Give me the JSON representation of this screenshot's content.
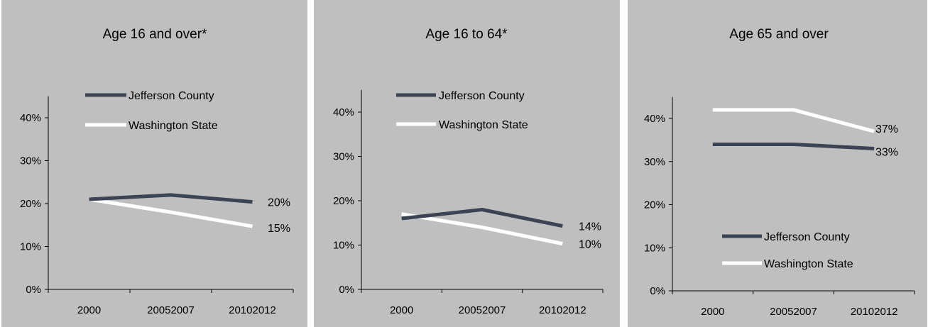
{
  "colors": {
    "background": "#bfbfbf",
    "jefferson": "#3b4454",
    "washington": "#ffffff",
    "axis": "#000000"
  },
  "chart_data": [
    {
      "type": "line",
      "title": "Age 16 and over*",
      "categories": [
        "2000",
        "20052007",
        "20102012"
      ],
      "yticks": [
        "0%",
        "10%",
        "20%",
        "30%",
        "40%"
      ],
      "ylim": [
        0,
        45
      ],
      "legend_position": "top",
      "series": [
        {
          "name": "Jefferson County",
          "values": [
            21,
            22,
            20.4
          ],
          "end_label": "20%"
        },
        {
          "name": "Washington State",
          "values": [
            21,
            18,
            14.7
          ],
          "end_label": "15%"
        }
      ]
    },
    {
      "type": "line",
      "title": "Age 16 to 64*",
      "categories": [
        "2000",
        "20052007",
        "20102012"
      ],
      "yticks": [
        "0%",
        "10%",
        "20%",
        "30%",
        "40%"
      ],
      "ylim": [
        0,
        45
      ],
      "legend_position": "top",
      "series": [
        {
          "name": "Jefferson County",
          "values": [
            16,
            18,
            14.3
          ],
          "end_label": "14%"
        },
        {
          "name": "Washington State",
          "values": [
            17,
            14,
            10.3
          ],
          "end_label": "10%"
        }
      ]
    },
    {
      "type": "line",
      "title": "Age 65 and over",
      "categories": [
        "2000",
        "20052007",
        "20102012"
      ],
      "yticks": [
        "0%",
        "10%",
        "20%",
        "30%",
        "40%"
      ],
      "ylim": [
        0,
        45
      ],
      "legend_position": "bottom",
      "series": [
        {
          "name": "Jefferson County",
          "values": [
            34,
            34,
            33
          ],
          "end_label": "33%"
        },
        {
          "name": "Washington State",
          "values": [
            42,
            42,
            37
          ],
          "end_label": "37%"
        }
      ]
    }
  ]
}
